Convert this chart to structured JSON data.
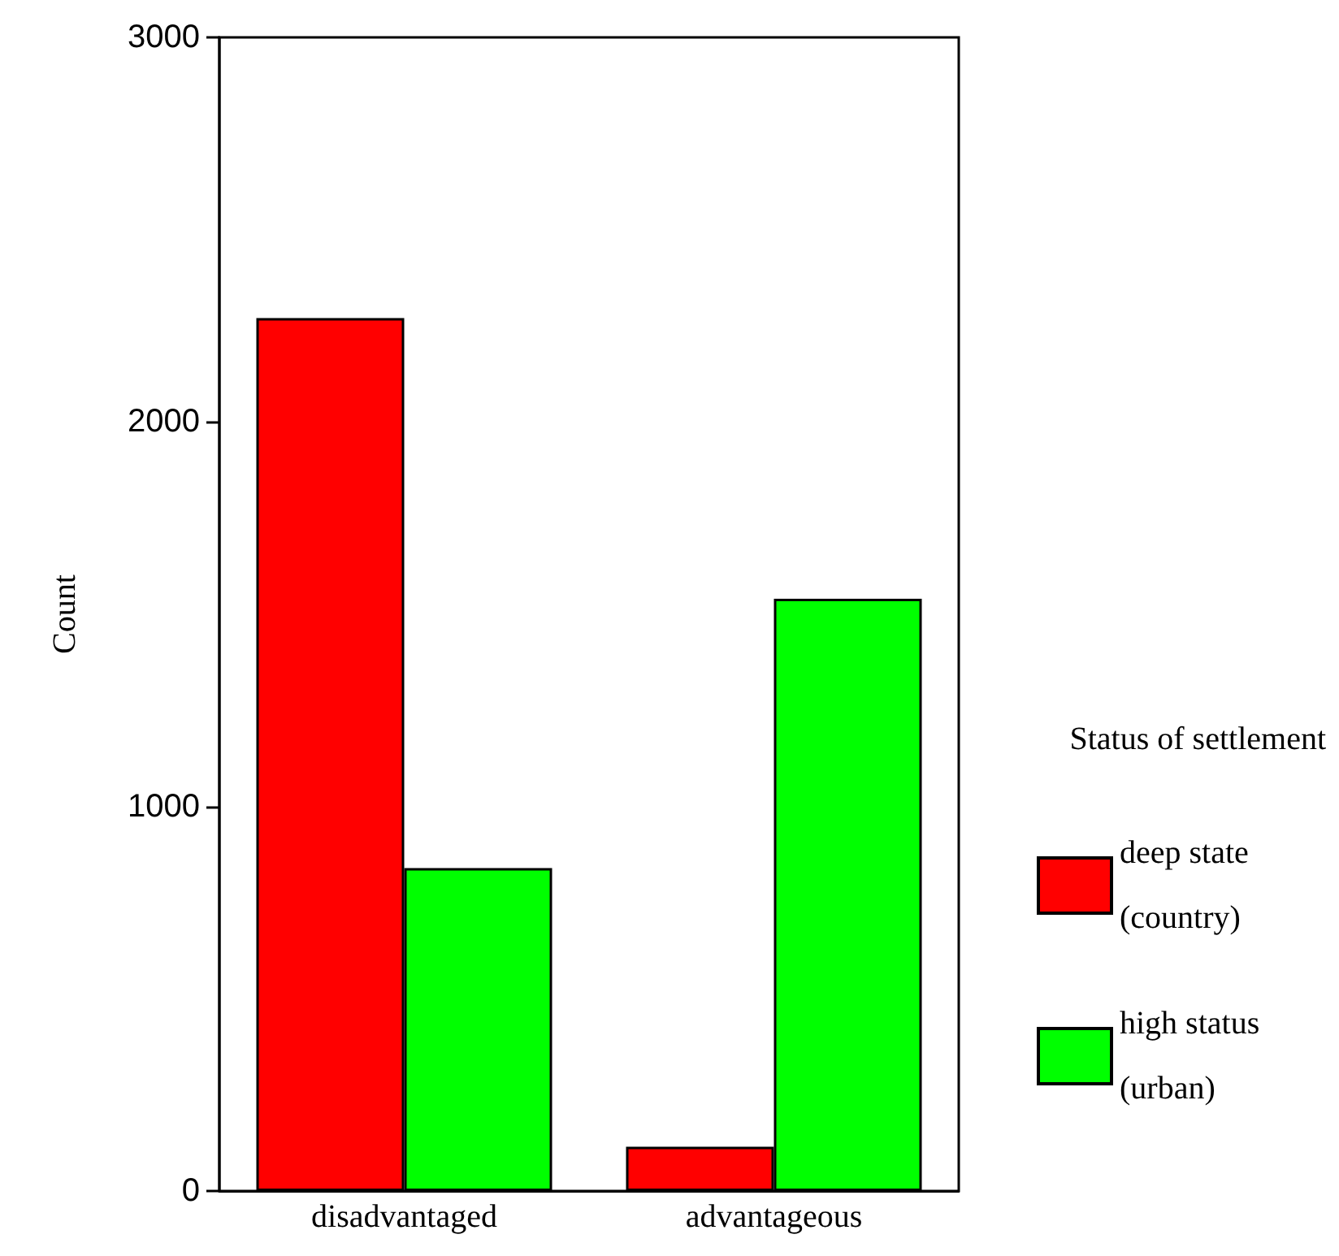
{
  "chart_data": {
    "type": "bar",
    "ylabel": "Count",
    "legend_title": "Status of settlement",
    "categories": [
      "disadvantaged",
      "advantageous"
    ],
    "series": [
      {
        "name": "deep state (country)",
        "color": "#ff0000",
        "values": [
          2270,
          115
        ]
      },
      {
        "name": "high status (urban)",
        "color": "#00ff00",
        "values": [
          840,
          1540
        ]
      }
    ],
    "ylim": [
      0,
      3000
    ],
    "yticks": [
      0,
      1000,
      2000,
      3000
    ],
    "grid": false,
    "legend": "right"
  }
}
